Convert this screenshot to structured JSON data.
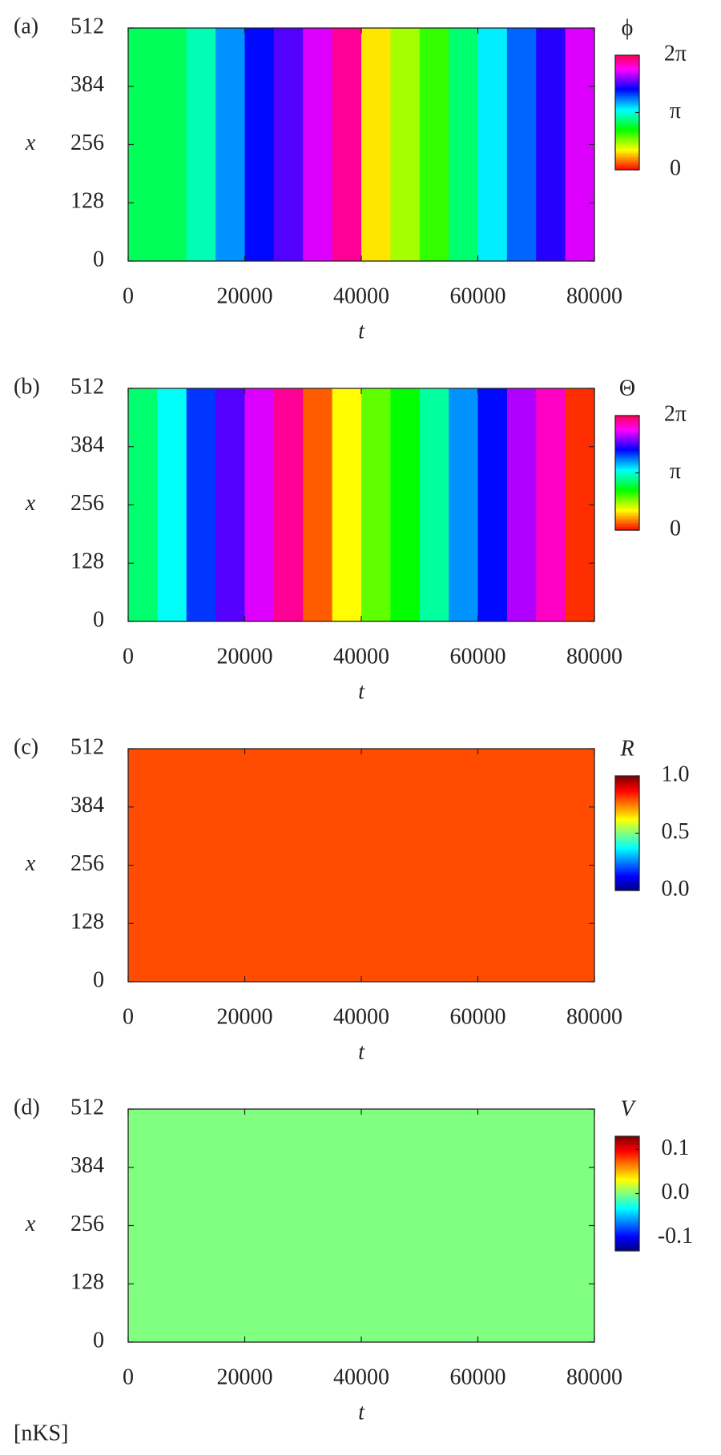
{
  "chart_data": [
    {
      "type": "heatmap",
      "panel_label": "(a)",
      "xlabel": "t",
      "ylabel": "x",
      "xlim": [
        0,
        80000
      ],
      "xticks": [
        0,
        20000,
        40000,
        60000,
        80000
      ],
      "ylim": [
        0,
        512
      ],
      "yticks": [
        0,
        128,
        256,
        384,
        512
      ],
      "t_bins": [
        0,
        5000,
        10000,
        15000,
        20000,
        25000,
        30000,
        35000,
        40000,
        45000,
        50000,
        55000,
        60000,
        65000,
        70000,
        75000,
        80000
      ],
      "x_bins": [
        0,
        512
      ],
      "values": [
        [
          2.6,
          2.6,
          3.0,
          3.8,
          4.4,
          4.8,
          5.4,
          6.0,
          1.0,
          1.5,
          2.0,
          2.7,
          3.4,
          4.0,
          4.6,
          5.4
        ]
      ],
      "colorbar": {
        "label": "ϕ",
        "colormap": "hsv",
        "lim": [
          0,
          6.28319
        ],
        "ticks": [
          {
            "value": 0,
            "label": "0"
          },
          {
            "value": 3.14159,
            "label": "π"
          },
          {
            "value": 6.28319,
            "label": "2π"
          }
        ]
      }
    },
    {
      "type": "heatmap",
      "panel_label": "(b)",
      "xlabel": "t",
      "ylabel": "x",
      "xlim": [
        0,
        80000
      ],
      "xticks": [
        0,
        20000,
        40000,
        60000,
        80000
      ],
      "ylim": [
        0,
        512
      ],
      "yticks": [
        0,
        128,
        256,
        384,
        512
      ],
      "t_bins": [
        0,
        5000,
        10000,
        15000,
        20000,
        25000,
        30000,
        35000,
        40000,
        45000,
        50000,
        55000,
        60000,
        65000,
        70000,
        75000,
        80000
      ],
      "x_bins": [
        0,
        512
      ],
      "values": [
        [
          2.7,
          3.3,
          4.2,
          4.8,
          5.4,
          6.0,
          0.4,
          1.1,
          1.8,
          2.2,
          2.9,
          3.8,
          4.4,
          5.2,
          5.8,
          0.2
        ]
      ],
      "colorbar": {
        "label": "Θ",
        "colormap": "hsv",
        "lim": [
          0,
          6.28319
        ],
        "ticks": [
          {
            "value": 0,
            "label": "0"
          },
          {
            "value": 3.14159,
            "label": "π"
          },
          {
            "value": 6.28319,
            "label": "2π"
          }
        ]
      }
    },
    {
      "type": "heatmap",
      "panel_label": "(c)",
      "xlabel": "t",
      "ylabel": "x",
      "xlim": [
        0,
        80000
      ],
      "xticks": [
        0,
        20000,
        40000,
        60000,
        80000
      ],
      "ylim": [
        0,
        512
      ],
      "yticks": [
        0,
        128,
        256,
        384,
        512
      ],
      "t_bins": [
        0,
        5000,
        10000,
        15000,
        20000,
        25000,
        30000,
        35000,
        40000,
        45000,
        50000,
        55000,
        60000,
        65000,
        70000,
        75000,
        80000
      ],
      "x_bins": [
        0,
        512
      ],
      "values": [
        [
          0.8,
          0.8,
          0.8,
          0.8,
          0.8,
          0.8,
          0.8,
          0.8,
          0.8,
          0.8,
          0.8,
          0.8,
          0.8,
          0.8,
          0.8,
          0.8
        ]
      ],
      "colorbar": {
        "label": "R",
        "colormap": "jet",
        "lim": [
          0,
          1
        ],
        "ticks": [
          {
            "value": 0,
            "label": "0.0"
          },
          0.5,
          {
            "value": 1,
            "label": "1.0"
          }
        ]
      }
    },
    {
      "type": "heatmap",
      "panel_label": "(d)",
      "xlabel": "t",
      "ylabel": "x",
      "xlim": [
        0,
        80000
      ],
      "xticks": [
        0,
        20000,
        40000,
        60000,
        80000
      ],
      "ylim": [
        0,
        512
      ],
      "yticks": [
        0,
        128,
        256,
        384,
        512
      ],
      "t_bins": [
        0,
        5000,
        10000,
        15000,
        20000,
        25000,
        30000,
        35000,
        40000,
        45000,
        50000,
        55000,
        60000,
        65000,
        70000,
        75000,
        80000
      ],
      "x_bins": [
        0,
        512
      ],
      "values": [
        [
          0,
          0,
          0,
          0,
          0,
          0,
          0,
          0,
          0,
          0,
          0,
          0,
          0,
          0,
          0,
          0
        ]
      ],
      "colorbar": {
        "label": "V",
        "colormap": "jet",
        "lim": [
          -0.13,
          0.13
        ],
        "ticks": [
          -0.1,
          {
            "value": 0,
            "label": "0.0"
          },
          0.1
        ]
      }
    }
  ],
  "footer": "[nKS]"
}
